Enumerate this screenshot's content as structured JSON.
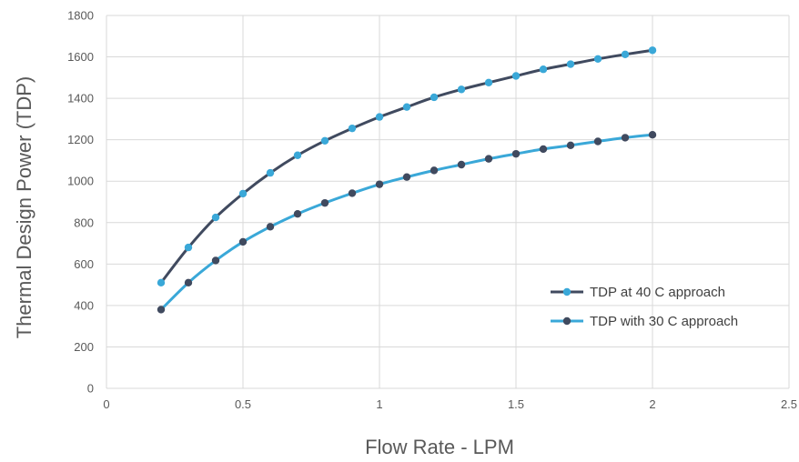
{
  "chart_data": {
    "type": "line",
    "xlabel": "Flow Rate - LPM",
    "ylabel": "Thermal Design Power (TDP)",
    "xlim": [
      0,
      2.5
    ],
    "ylim": [
      0,
      1800
    ],
    "xticks": [
      0,
      0.5,
      1,
      1.5,
      2,
      2.5
    ],
    "xtick_labels": [
      "0",
      "0.5",
      "1",
      "1.5",
      "2",
      "2.5"
    ],
    "yticks": [
      0,
      200,
      400,
      600,
      800,
      1000,
      1200,
      1400,
      1600,
      1800
    ],
    "ytick_labels": [
      "0",
      "200",
      "400",
      "600",
      "800",
      "1000",
      "1200",
      "1400",
      "1600",
      "1800"
    ],
    "grid": true,
    "legend_position": "right",
    "x": [
      0.2,
      0.3,
      0.4,
      0.5,
      0.6,
      0.7,
      0.8,
      0.9,
      1.0,
      1.1,
      1.2,
      1.3,
      1.4,
      1.5,
      1.6,
      1.7,
      1.8,
      1.9,
      2.0
    ],
    "series": [
      {
        "name": "TDP at 40 C approach",
        "line_color": "#404a5f",
        "marker_color": "#3aa8d8",
        "values": [
          510,
          680,
          825,
          940,
          1040,
          1125,
          1195,
          1255,
          1310,
          1358,
          1405,
          1443,
          1476,
          1508,
          1540,
          1565,
          1590,
          1612,
          1632
        ]
      },
      {
        "name": "TDP with 30 C approach",
        "line_color": "#3aa8d8",
        "marker_color": "#404a5f",
        "values": [
          380,
          510,
          617,
          707,
          780,
          842,
          895,
          942,
          985,
          1020,
          1052,
          1080,
          1108,
          1132,
          1155,
          1173,
          1192,
          1210,
          1224
        ]
      }
    ]
  }
}
